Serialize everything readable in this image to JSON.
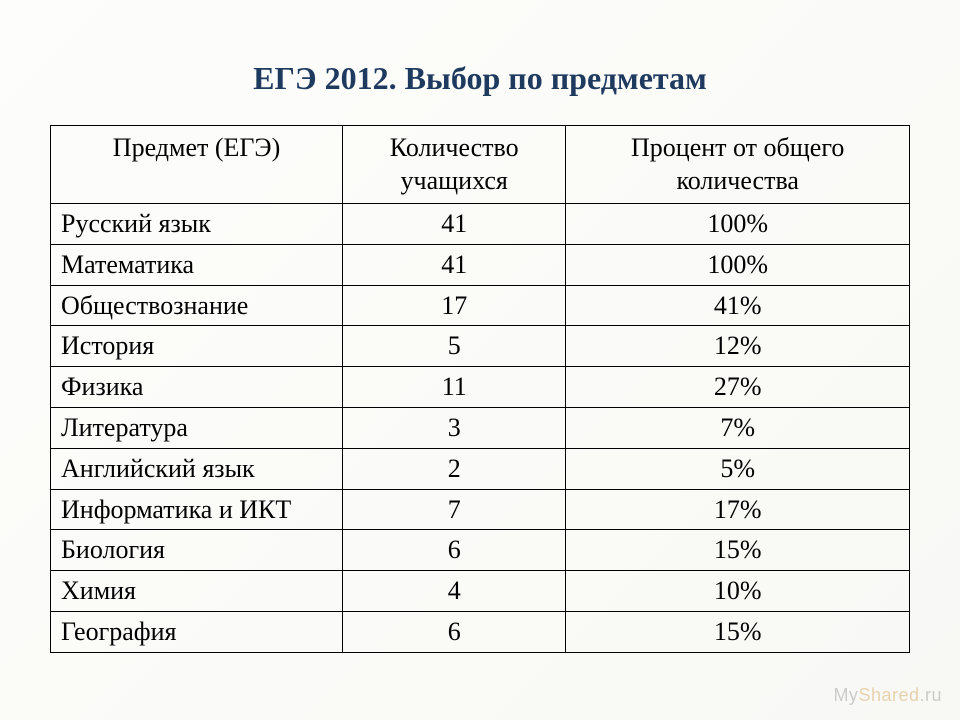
{
  "title": "ЕГЭ 2012. Выбор по предметам",
  "table": {
    "type": "table",
    "columns": [
      {
        "label": "Предмет  (ЕГЭ)",
        "align": "center",
        "width_pct": 34
      },
      {
        "label": "Количество учащихся",
        "align": "center",
        "width_pct": 26
      },
      {
        "label": "Процент от общего количества",
        "align": "center",
        "width_pct": 40
      }
    ],
    "rows": [
      {
        "subject": "Русский язык",
        "count": "41",
        "percent": "100%"
      },
      {
        "subject": "Математика",
        "count": "41",
        "percent": "100%"
      },
      {
        "subject": "Обществознание",
        "count": "17",
        "percent": "41%"
      },
      {
        "subject": "История",
        "count": "5",
        "percent": "12%"
      },
      {
        "subject": "Физика",
        "count": "11",
        "percent": "27%"
      },
      {
        "subject": "Литература",
        "count": "3",
        "percent": "7%"
      },
      {
        "subject": "Английский язык",
        "count": "2",
        "percent": "5%"
      },
      {
        "subject": "Информатика и ИКТ",
        "count": "7",
        "percent": "17%"
      },
      {
        "subject": "Биология",
        "count": "6",
        "percent": "15%"
      },
      {
        "subject": "Химия",
        "count": "4",
        "percent": "10%"
      },
      {
        "subject": "География",
        "count": "6",
        "percent": "15%"
      }
    ],
    "border_color": "#000000",
    "font_size_pt": 20,
    "title_color": "#1f3a5f",
    "title_font_size_pt": 24,
    "background_color": "#fdfdfb"
  },
  "watermark": {
    "prefix": "My",
    "suffix": "Shared",
    "ext": ".ru"
  }
}
